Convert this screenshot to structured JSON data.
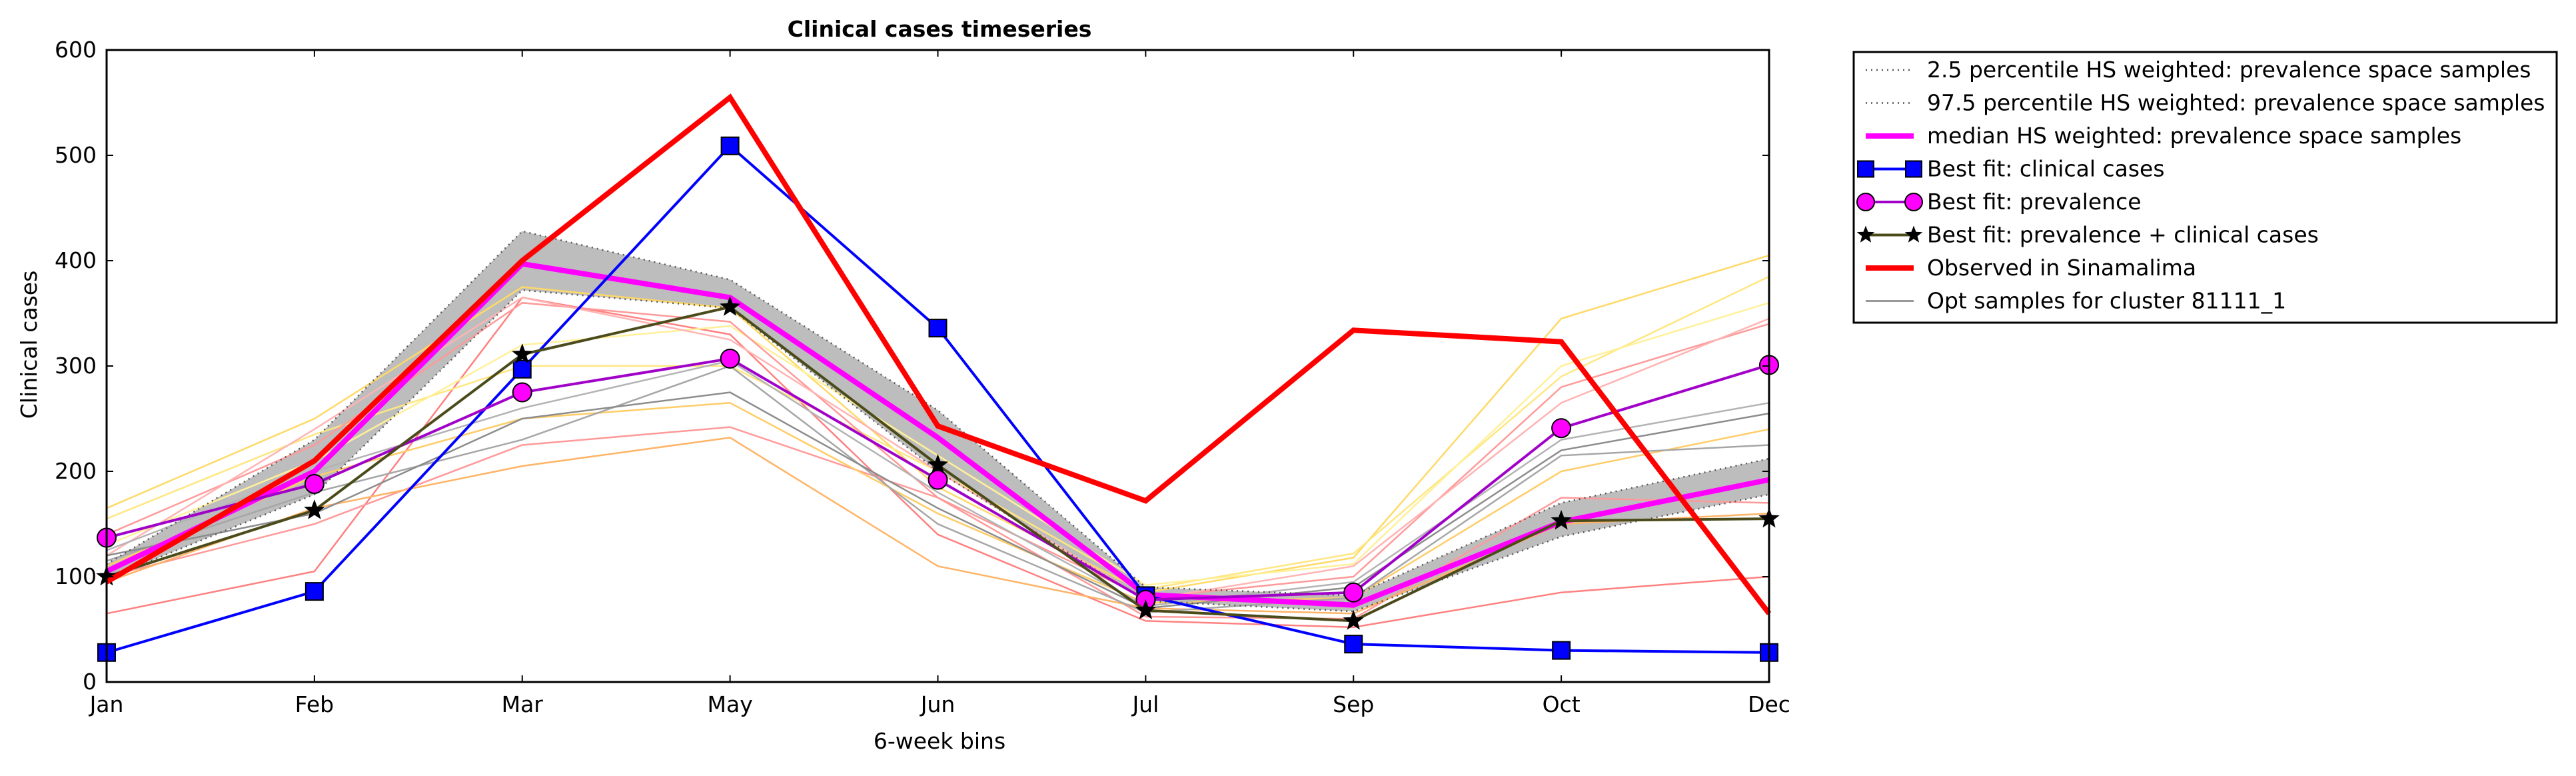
{
  "chart_data": {
    "type": "line",
    "title": "Clinical cases timeseries",
    "xlabel": "6-week bins",
    "ylabel": "Clinical cases",
    "categories": [
      "Jan",
      "Feb",
      "Mar",
      "May",
      "Jun",
      "Jul",
      "Sep",
      "Oct",
      "Dec"
    ],
    "ylim": [
      0,
      600
    ],
    "yticks": [
      "0",
      "100",
      "200",
      "300",
      "400",
      "500",
      "600"
    ],
    "grid": false,
    "legend_position": "outside-right-top",
    "band": {
      "lower": [
        98,
        178,
        372,
        355,
        200,
        77,
        67,
        138,
        178
      ],
      "upper": [
        112,
        230,
        428,
        382,
        258,
        90,
        82,
        170,
        212
      ],
      "fill_color": "#bdbdbd"
    },
    "samples": [
      {
        "color": "#ff8080",
        "values": [
          65,
          105,
          365,
          330,
          140,
          58,
          52,
          85,
          100
        ]
      },
      {
        "color": "#ff9999",
        "values": [
          100,
          150,
          225,
          242,
          175,
          62,
          60,
          175,
          170
        ]
      },
      {
        "color": "#ffb366",
        "values": [
          95,
          165,
          205,
          232,
          110,
          70,
          65,
          150,
          160
        ]
      },
      {
        "color": "#ffcc66",
        "values": [
          110,
          195,
          250,
          265,
          160,
          75,
          80,
          200,
          240
        ]
      },
      {
        "color": "#ffd966",
        "values": [
          165,
          250,
          375,
          355,
          185,
          85,
          118,
          345,
          405
        ]
      },
      {
        "color": "#ffe680",
        "values": [
          155,
          235,
          300,
          300,
          200,
          88,
          122,
          290,
          385
        ]
      },
      {
        "color": "#fff099",
        "values": [
          130,
          210,
          320,
          338,
          215,
          92,
          112,
          300,
          360
        ]
      },
      {
        "color": "#ff9999",
        "values": [
          140,
          225,
          360,
          342,
          175,
          80,
          100,
          280,
          340
        ]
      },
      {
        "color": "#ffb3b3",
        "values": [
          120,
          240,
          365,
          325,
          200,
          78,
          110,
          265,
          345
        ]
      },
      {
        "color": "#a6a6a6",
        "values": [
          115,
          180,
          230,
          300,
          150,
          66,
          80,
          215,
          225
        ]
      },
      {
        "color": "#8c8c8c",
        "values": [
          120,
          160,
          250,
          275,
          165,
          70,
          90,
          220,
          255
        ]
      },
      {
        "color": "#b3b3b3",
        "values": [
          125,
          200,
          260,
          305,
          180,
          72,
          95,
          230,
          265
        ]
      }
    ],
    "series": [
      {
        "name": "2.5 percentile HS weighted: prevalence space samples",
        "style": "dotted",
        "color": "#555555",
        "values": [
          98,
          178,
          372,
          355,
          200,
          77,
          67,
          138,
          178
        ]
      },
      {
        "name": "97.5 percentile HS weighted: prevalence space samples",
        "style": "dotted",
        "color": "#555555",
        "values": [
          112,
          230,
          428,
          382,
          258,
          90,
          82,
          170,
          212
        ]
      },
      {
        "name": "median HS weighted: prevalence space samples",
        "style": "thick",
        "color": "#ff00ff",
        "values": [
          105,
          200,
          397,
          365,
          232,
          83,
          73,
          152,
          192
        ]
      },
      {
        "name": "Best fit: clinical cases",
        "style": "marker-square",
        "color": "#0000ff",
        "values": [
          28,
          86,
          297,
          509,
          336,
          82,
          36,
          30,
          28
        ]
      },
      {
        "name": "Best fit: prevalence",
        "style": "marker-circle",
        "color": "#a000c8",
        "marker_fill": "#ff00ff",
        "values": [
          137,
          188,
          275,
          307,
          192,
          78,
          85,
          241,
          301
        ]
      },
      {
        "name": "Best fit: prevalence + clinical cases",
        "style": "marker-star",
        "color": "#4a4a1a",
        "values": [
          100,
          163,
          311,
          356,
          206,
          68,
          58,
          153,
          155
        ]
      },
      {
        "name": "Observed in Sinamalima",
        "style": "thick",
        "color": "#ff0000",
        "values": [
          95,
          210,
          400,
          555,
          243,
          172,
          334,
          323,
          65
        ]
      },
      {
        "name": "Opt samples for cluster 81111_1",
        "style": "thin",
        "color": "#999999",
        "values": null
      }
    ]
  }
}
